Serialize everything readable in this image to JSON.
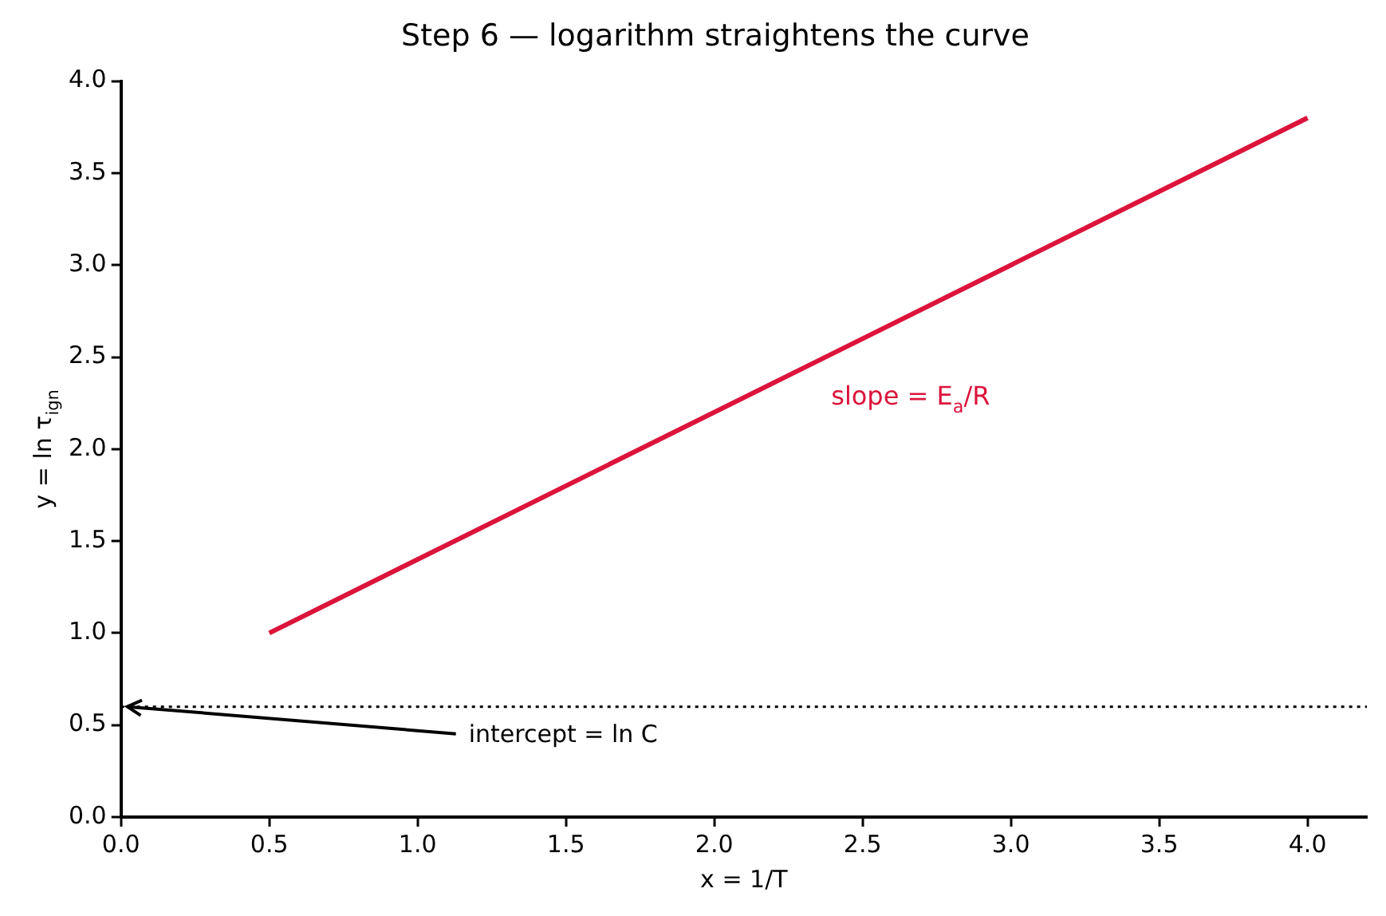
{
  "chart_data": {
    "type": "line",
    "title": "Step 6 — logarithm straightens the curve",
    "xlabel": "x = 1/T",
    "ylabel": "y = ln τ$_{ign}$",
    "series": [
      {
        "color": "#dc143c",
        "x": [
          0.5,
          4.0
        ],
        "values": [
          1.0,
          3.8
        ]
      }
    ],
    "xlim": [
      0,
      4.2
    ],
    "xticks": [
      {
        "value": 0,
        "label": "0.0"
      },
      {
        "value": 0.5,
        "label": "0.5"
      },
      {
        "value": 1,
        "label": "1.0"
      },
      {
        "value": 1.5,
        "label": "1.5"
      },
      {
        "value": 2,
        "label": "2.0"
      },
      {
        "value": 2.5,
        "label": "2.5"
      },
      {
        "value": 3,
        "label": "3.0"
      },
      {
        "value": 3.5,
        "label": "3.5"
      },
      {
        "value": 4,
        "label": "4.0"
      }
    ],
    "ylim": [
      0,
      4
    ],
    "yticks": [
      {
        "value": 0,
        "label": "0.0"
      },
      {
        "value": 0.5,
        "label": "0.5"
      },
      {
        "value": 1,
        "label": "1.0"
      },
      {
        "value": 1.5,
        "label": "1.5"
      },
      {
        "value": 2,
        "label": "2.0"
      },
      {
        "value": 2.5,
        "label": "2.5"
      },
      {
        "value": 3,
        "label": "3.0"
      },
      {
        "value": 3.5,
        "label": "3.5"
      },
      {
        "value": 4,
        "label": "4.0"
      }
    ],
    "ref_lines": [
      {
        "axis": "y",
        "value": 0.6,
        "color": "#000000",
        "line_style": "dotted"
      }
    ],
    "annotations": [
      "slope = E$_{a}$/R",
      {
        "text": "intercept = ln C",
        "x": 0,
        "y": 0.6
      }
    ],
    "grid": false,
    "legend": false,
    "marker": "none",
    "line_style": "solid"
  }
}
